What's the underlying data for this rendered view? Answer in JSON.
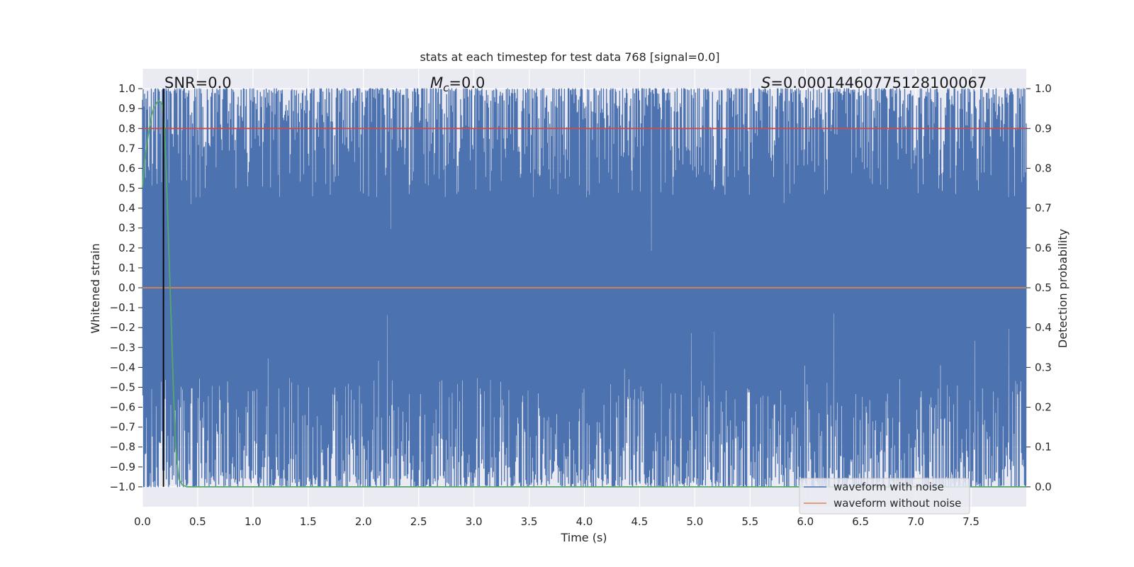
{
  "chart_data": {
    "type": "line",
    "title": "stats at each timestep for test data 768 [signal=0.0]",
    "xlabel": "Time (s)",
    "ylabel_left": "Whitened strain",
    "ylabel_right": "Detection probability",
    "xlim": [
      0.0,
      8.0
    ],
    "ylim_left": [
      -1.1,
      1.1
    ],
    "ylim_right": [
      -0.05,
      1.05
    ],
    "x_ticks": [
      "0.0",
      "0.5",
      "1.0",
      "1.5",
      "2.0",
      "2.5",
      "3.0",
      "3.5",
      "4.0",
      "4.5",
      "5.0",
      "5.5",
      "6.0",
      "6.5",
      "7.0",
      "7.5"
    ],
    "y_ticks_left": [
      "1.0",
      "0.9",
      "0.8",
      "0.7",
      "0.6",
      "0.5",
      "0.4",
      "0.3",
      "0.2",
      "0.1",
      "0.0",
      "−0.1",
      "−0.2",
      "−0.3",
      "−0.4",
      "−0.5",
      "−0.6",
      "−0.7",
      "−0.8",
      "−0.9",
      "−1.0"
    ],
    "y_ticks_right": [
      "1.0",
      "0.9",
      "0.8",
      "0.7",
      "0.6",
      "0.5",
      "0.4",
      "0.3",
      "0.2",
      "0.1",
      "0.0"
    ],
    "grid": true,
    "annotations": {
      "snr": "SNR=0.0",
      "mc_symbol": "M",
      "mc_sub": "c",
      "mc_value": "=0.0",
      "s_symbol": "S",
      "s_value": "=0.00014460775128100067"
    },
    "series": [
      {
        "name": "waveform with noise",
        "axis": "left",
        "color": "#4c72b0",
        "description_values": "dense noise spanning approximately -1.0 to 1.0 across 0-8 s",
        "range": [
          -1.0,
          1.0
        ]
      },
      {
        "name": "waveform without noise",
        "axis": "left",
        "color": "#dd8452",
        "x": [
          0.0,
          8.0
        ],
        "y": [
          0.0,
          0.0
        ]
      },
      {
        "axis": "right",
        "color": "#c44e52",
        "x": [
          0.0,
          8.0
        ],
        "y": [
          0.9,
          0.9
        ]
      },
      {
        "axis": "right",
        "color": "#55a868",
        "x": [
          0.0,
          0.02,
          0.05,
          0.08,
          0.1,
          0.13,
          0.15,
          0.18,
          0.2,
          0.22,
          0.25,
          0.28,
          0.3,
          0.33,
          0.36,
          0.4,
          1.0,
          3.0,
          5.0,
          7.0,
          8.0
        ],
        "y": [
          0.75,
          0.82,
          0.88,
          0.93,
          0.95,
          0.965,
          0.97,
          0.96,
          0.9,
          0.75,
          0.5,
          0.25,
          0.1,
          0.02,
          0.005,
          0.0,
          0.0,
          0.0,
          0.0,
          0.0,
          0.0
        ]
      }
    ],
    "vline": {
      "x": 0.19,
      "color": "#000000"
    },
    "legend": {
      "placement": "bottom-right",
      "entries": [
        {
          "label": "waveform with noise",
          "color": "#4c72b0"
        },
        {
          "label": "waveform without noise",
          "color": "#dd8452"
        }
      ]
    },
    "colors": {
      "background": "#eaeaf2",
      "grid": "#ffffff",
      "noise": "#4c72b0",
      "clean": "#dd8452",
      "threshold": "#c44e52",
      "probability": "#55a868",
      "marker": "#000000"
    }
  }
}
